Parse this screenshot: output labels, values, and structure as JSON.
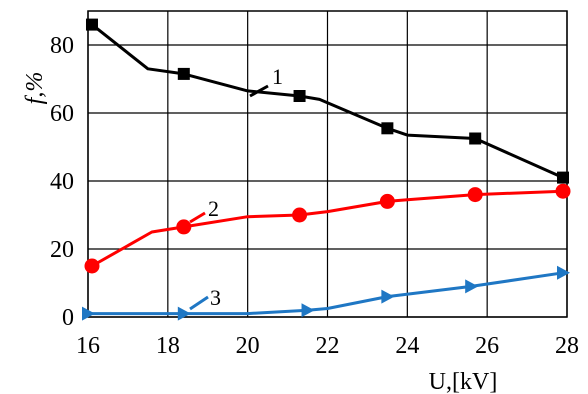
{
  "chart_data": {
    "type": "line",
    "title": "",
    "xlabel": "U,[kV]",
    "ylabel": "f,%",
    "xlim": [
      16,
      28
    ],
    "ylim": [
      0,
      90
    ],
    "x_ticks": [
      16,
      18,
      20,
      22,
      24,
      26,
      28
    ],
    "y_ticks": [
      0,
      20,
      40,
      60,
      80
    ],
    "grid": true,
    "legend": "none",
    "series": [
      {
        "label": "1",
        "color": "#000000",
        "marker": "square",
        "x": [
          16.1,
          17.5,
          18.4,
          20.0,
          21.3,
          21.8,
          23.5,
          24.0,
          25.7,
          27.9
        ],
        "y": [
          86,
          73,
          71.5,
          66.5,
          65,
          64,
          55.5,
          53.5,
          52.5,
          41
        ],
        "marker_x": [
          16.1,
          18.4,
          21.3,
          23.5,
          25.7,
          27.9
        ],
        "marker_y": [
          86,
          71.5,
          65,
          55.5,
          52.5,
          41
        ]
      },
      {
        "label": "2",
        "color": "#ff0000",
        "marker": "circle",
        "x": [
          16.1,
          17.6,
          18.4,
          20.0,
          21.3,
          22.0,
          23.5,
          24.0,
          25.7,
          27.9
        ],
        "y": [
          15,
          25,
          26.5,
          29.5,
          30,
          31,
          34,
          34.5,
          36,
          37
        ],
        "marker_x": [
          16.1,
          18.4,
          21.3,
          23.5,
          25.7,
          27.9
        ],
        "marker_y": [
          15,
          26.5,
          30,
          34,
          36,
          37
        ],
        "marker_values": []
      },
      {
        "label": "3",
        "color": "#1f77c4",
        "marker": "triangle-right",
        "x": [
          16.0,
          18.4,
          20.0,
          21.5,
          22.0,
          23.5,
          25.6,
          27.9
        ],
        "y": [
          1,
          1,
          1,
          2,
          2.5,
          6,
          9,
          13
        ],
        "marker_x": [
          16.0,
          18.4,
          21.5,
          23.5,
          25.6,
          27.9
        ],
        "marker_y": [
          1,
          1,
          2,
          6,
          9,
          13
        ]
      }
    ]
  }
}
